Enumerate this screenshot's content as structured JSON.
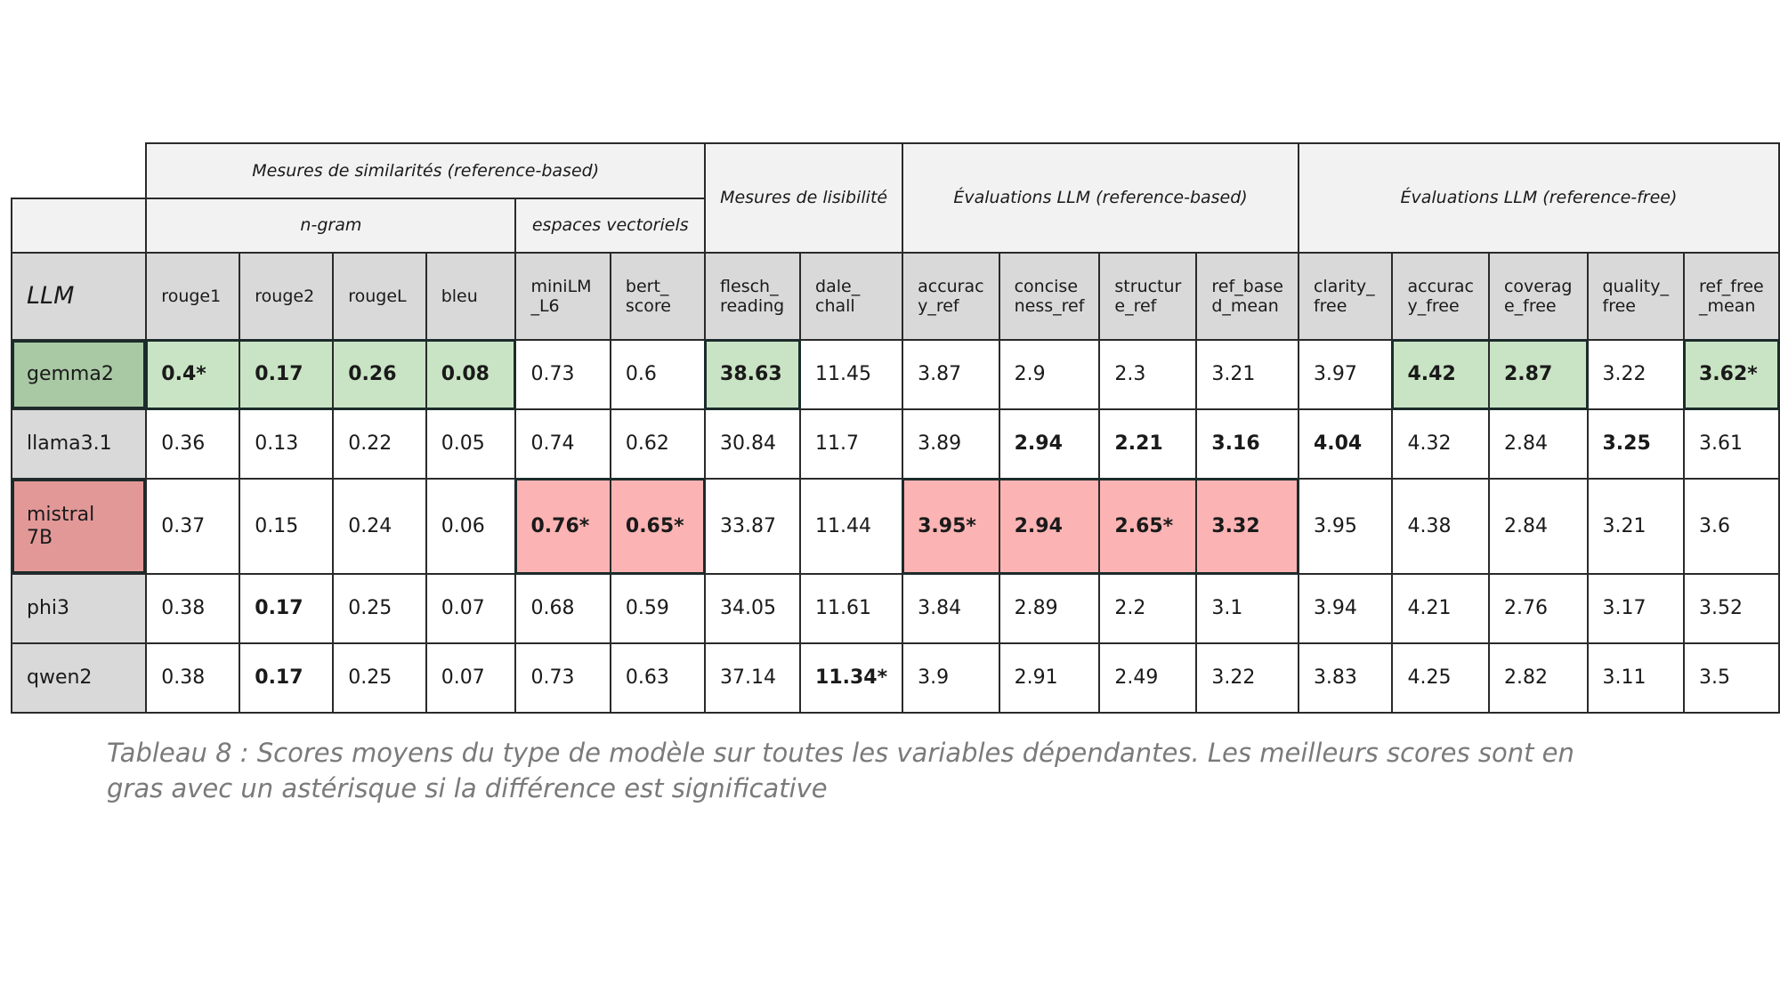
{
  "groups": {
    "similarity": "Mesures de similarités (reference-based)",
    "ngram": "n-gram",
    "vector": "espaces vectoriels",
    "readability": "Mesures de lisibilité",
    "llm_ref": "Évaluations LLM (reference-based)",
    "llm_free": "Évaluations LLM (reference-free)"
  },
  "llm_header": "LLM",
  "columns": [
    "rouge1",
    "rouge2",
    "rougeL",
    "bleu",
    "miniLM\n_L6",
    "bert_\nscore",
    "flesch_\nreading",
    "dale_\nchall",
    "accurac\ny_ref",
    "concise\nness_ref",
    "structur\ne_ref",
    "ref_base\nd_mean",
    "clarity_\nfree",
    "accurac\ny_free",
    "coverag\ne_free",
    "quality_\nfree",
    "ref_free\n_mean"
  ],
  "rows": [
    {
      "model": "gemma2",
      "highlight": "green",
      "cells": [
        {
          "v": "0.4*",
          "b": true,
          "h": "green"
        },
        {
          "v": "0.17",
          "b": true,
          "h": "green"
        },
        {
          "v": "0.26",
          "b": true,
          "h": "green"
        },
        {
          "v": "0.08",
          "b": true,
          "h": "green"
        },
        {
          "v": "0.73"
        },
        {
          "v": "0.6"
        },
        {
          "v": "38.63",
          "b": true,
          "h": "green"
        },
        {
          "v": "11.45"
        },
        {
          "v": "3.87"
        },
        {
          "v": "2.9"
        },
        {
          "v": "2.3"
        },
        {
          "v": "3.21"
        },
        {
          "v": "3.97"
        },
        {
          "v": "4.42",
          "b": true,
          "h": "green"
        },
        {
          "v": "2.87",
          "b": true,
          "h": "green"
        },
        {
          "v": "3.22"
        },
        {
          "v": "3.62*",
          "b": true,
          "h": "green"
        }
      ]
    },
    {
      "model": "llama3.1",
      "highlight": "",
      "cells": [
        {
          "v": "0.36"
        },
        {
          "v": "0.13"
        },
        {
          "v": "0.22"
        },
        {
          "v": "0.05"
        },
        {
          "v": "0.74"
        },
        {
          "v": "0.62"
        },
        {
          "v": "30.84"
        },
        {
          "v": "11.7"
        },
        {
          "v": "3.89"
        },
        {
          "v": "2.94",
          "b": true
        },
        {
          "v": "2.21",
          "b": true
        },
        {
          "v": "3.16",
          "b": true
        },
        {
          "v": "4.04",
          "b": true
        },
        {
          "v": "4.32"
        },
        {
          "v": "2.84"
        },
        {
          "v": "3.25",
          "b": true
        },
        {
          "v": "3.61"
        }
      ]
    },
    {
      "model": "mistral\n7B",
      "highlight": "red",
      "cells": [
        {
          "v": "0.37"
        },
        {
          "v": "0.15"
        },
        {
          "v": "0.24"
        },
        {
          "v": "0.06"
        },
        {
          "v": "0.76*",
          "b": true,
          "h": "red"
        },
        {
          "v": "0.65*",
          "b": true,
          "h": "red"
        },
        {
          "v": "33.87"
        },
        {
          "v": "11.44"
        },
        {
          "v": "3.95*",
          "b": true,
          "h": "red"
        },
        {
          "v": "2.94",
          "b": true,
          "h": "red"
        },
        {
          "v": "2.65*",
          "b": true,
          "h": "red"
        },
        {
          "v": "3.32",
          "b": true,
          "h": "red"
        },
        {
          "v": "3.95"
        },
        {
          "v": "4.38"
        },
        {
          "v": "2.84"
        },
        {
          "v": "3.21"
        },
        {
          "v": "3.6"
        }
      ]
    },
    {
      "model": "phi3",
      "highlight": "",
      "cells": [
        {
          "v": "0.38"
        },
        {
          "v": "0.17",
          "b": true
        },
        {
          "v": "0.25"
        },
        {
          "v": "0.07"
        },
        {
          "v": "0.68"
        },
        {
          "v": "0.59"
        },
        {
          "v": "34.05"
        },
        {
          "v": "11.61"
        },
        {
          "v": "3.84"
        },
        {
          "v": "2.89"
        },
        {
          "v": "2.2"
        },
        {
          "v": "3.1"
        },
        {
          "v": "3.94"
        },
        {
          "v": "4.21"
        },
        {
          "v": "2.76"
        },
        {
          "v": "3.17"
        },
        {
          "v": "3.52"
        }
      ]
    },
    {
      "model": "qwen2",
      "highlight": "",
      "cells": [
        {
          "v": "0.38"
        },
        {
          "v": "0.17",
          "b": true
        },
        {
          "v": "0.25"
        },
        {
          "v": "0.07"
        },
        {
          "v": "0.73"
        },
        {
          "v": "0.63"
        },
        {
          "v": "37.14"
        },
        {
          "v": "11.34*",
          "b": true
        },
        {
          "v": "3.9"
        },
        {
          "v": "2.91"
        },
        {
          "v": "2.49"
        },
        {
          "v": "3.22"
        },
        {
          "v": "3.83"
        },
        {
          "v": "4.25"
        },
        {
          "v": "2.82"
        },
        {
          "v": "3.11"
        },
        {
          "v": "3.5"
        }
      ]
    }
  ],
  "caption": "Tableau 8 : Scores moyens du type de modèle sur toutes les variables dépendantes. Les meilleurs scores sont en gras avec un astérisque si la différence est significative"
}
